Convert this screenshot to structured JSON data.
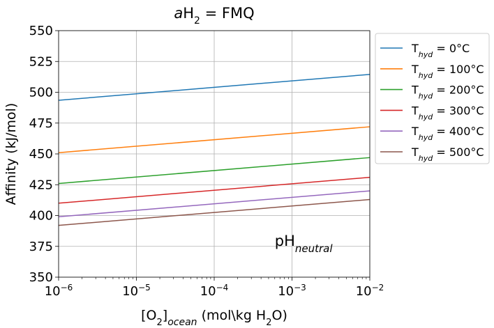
{
  "chart_data": {
    "type": "line",
    "title": {
      "italic": "a",
      "main": "H",
      "sub": "2",
      "rest": " = FMQ"
    },
    "xlabel": {
      "pre": "[O",
      "sub1": "2",
      "mid": "]",
      "sub2": "ocean",
      "post": " (mol\\kg H",
      "sub3": "2",
      "end": "O)"
    },
    "ylabel": "Affinity (kJ/mol)",
    "xscale": "log",
    "xlim": [
      1e-06,
      0.01
    ],
    "ylim": [
      350,
      550
    ],
    "x_ticks": [
      {
        "value": 1e-06,
        "base": "10",
        "exp": "−6"
      },
      {
        "value": 1e-05,
        "base": "10",
        "exp": "−5"
      },
      {
        "value": 0.0001,
        "base": "10",
        "exp": "−4"
      },
      {
        "value": 0.001,
        "base": "10",
        "exp": "−3"
      },
      {
        "value": 0.01,
        "base": "10",
        "exp": "−2"
      }
    ],
    "y_ticks": [
      350,
      375,
      400,
      425,
      450,
      475,
      500,
      525,
      550
    ],
    "grid": true,
    "legend_position": "outside-right",
    "annotation": {
      "main": "pH",
      "sub": "neutral",
      "x": 0.0006,
      "y": 375
    },
    "series": [
      {
        "name_main": "T",
        "name_sub": "hyd",
        "name_rest": " = 0°C",
        "color": "#1f77b4",
        "x": [
          1e-06,
          0.01
        ],
        "y": [
          493.5,
          514.5
        ]
      },
      {
        "name_main": "T",
        "name_sub": "hyd",
        "name_rest": " = 100°C",
        "color": "#ff7f0e",
        "x": [
          1e-06,
          0.01
        ],
        "y": [
          451,
          472
        ]
      },
      {
        "name_main": "T",
        "name_sub": "hyd",
        "name_rest": " = 200°C",
        "color": "#2ca02c",
        "x": [
          1e-06,
          0.01
        ],
        "y": [
          426,
          447
        ]
      },
      {
        "name_main": "T",
        "name_sub": "hyd",
        "name_rest": " = 300°C",
        "color": "#d62728",
        "x": [
          1e-06,
          0.01
        ],
        "y": [
          410,
          431
        ]
      },
      {
        "name_main": "T",
        "name_sub": "hyd",
        "name_rest": " = 400°C",
        "color": "#9467bd",
        "x": [
          1e-06,
          0.01
        ],
        "y": [
          399,
          420
        ]
      },
      {
        "name_main": "T",
        "name_sub": "hyd",
        "name_rest": " = 500°C",
        "color": "#8c564b",
        "x": [
          1e-06,
          0.01
        ],
        "y": [
          392,
          413
        ]
      }
    ]
  }
}
